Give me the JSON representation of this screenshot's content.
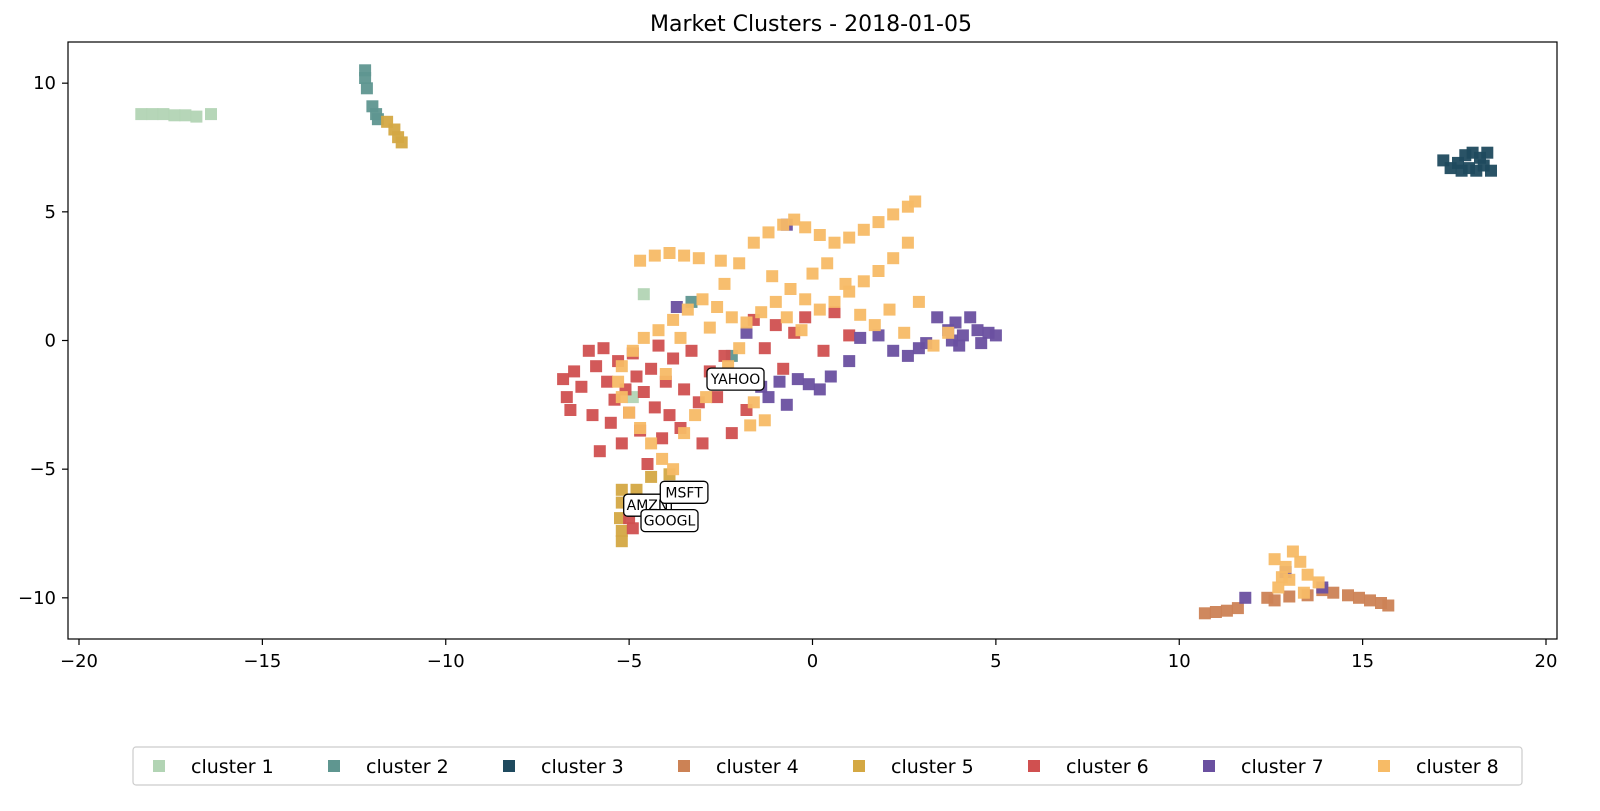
{
  "chart_data": {
    "type": "scatter",
    "title": "Market Clusters - 2018-01-05",
    "xlabel": "",
    "ylabel": "",
    "xlim": [
      -20.3,
      20.3
    ],
    "ylim": [
      -11.6,
      11.6
    ],
    "xticks": [
      -20,
      -15,
      -10,
      -5,
      0,
      5,
      10,
      15,
      20
    ],
    "xtick_labels": [
      "−20",
      "−15",
      "−10",
      "−5",
      "0",
      "5",
      "10",
      "15",
      "20"
    ],
    "yticks": [
      10,
      5,
      0,
      -5,
      -10
    ],
    "ytick_labels": [
      "10",
      "5",
      "0",
      "−5",
      "−10"
    ],
    "grid": false,
    "legend_position": "bottom-center",
    "marker": "square",
    "series": [
      {
        "name": "cluster 1",
        "color": "#b2d4b4",
        "points": [
          [
            -18.3,
            8.8
          ],
          [
            -18.0,
            8.8
          ],
          [
            -17.7,
            8.8
          ],
          [
            -17.4,
            8.75
          ],
          [
            -17.1,
            8.75
          ],
          [
            -16.8,
            8.7
          ],
          [
            -16.4,
            8.8
          ],
          [
            -4.6,
            1.8
          ],
          [
            -4.9,
            -2.2
          ]
        ]
      },
      {
        "name": "cluster 2",
        "color": "#5f9690",
        "points": [
          [
            -12.2,
            10.5
          ],
          [
            -12.2,
            10.2
          ],
          [
            -12.15,
            9.8
          ],
          [
            -12.0,
            9.1
          ],
          [
            -11.9,
            8.8
          ],
          [
            -11.85,
            8.6
          ],
          [
            -3.3,
            1.5
          ],
          [
            -2.2,
            -0.6
          ]
        ]
      },
      {
        "name": "cluster 3",
        "color": "#1f4a5e",
        "points": [
          [
            17.2,
            7.0
          ],
          [
            17.4,
            6.7
          ],
          [
            17.6,
            6.9
          ],
          [
            17.8,
            7.2
          ],
          [
            17.9,
            6.7
          ],
          [
            18.0,
            7.3
          ],
          [
            18.2,
            7.1
          ],
          [
            18.3,
            6.8
          ],
          [
            18.5,
            6.6
          ],
          [
            18.1,
            6.6
          ],
          [
            17.7,
            6.6
          ],
          [
            18.4,
            7.3
          ]
        ]
      },
      {
        "name": "cluster 4",
        "color": "#cc8255",
        "points": [
          [
            10.7,
            -10.6
          ],
          [
            11.0,
            -10.55
          ],
          [
            11.3,
            -10.5
          ],
          [
            11.6,
            -10.4
          ],
          [
            12.4,
            -10.0
          ],
          [
            12.6,
            -10.1
          ],
          [
            13.0,
            -9.95
          ],
          [
            13.5,
            -9.9
          ],
          [
            13.9,
            -9.7
          ],
          [
            14.2,
            -9.8
          ],
          [
            14.6,
            -9.9
          ],
          [
            14.9,
            -10.0
          ],
          [
            15.2,
            -10.1
          ],
          [
            15.5,
            -10.2
          ],
          [
            15.7,
            -10.3
          ]
        ]
      },
      {
        "name": "cluster 5",
        "color": "#d4a843",
        "points": [
          [
            -11.6,
            8.5
          ],
          [
            -11.4,
            8.2
          ],
          [
            -11.3,
            7.9
          ],
          [
            -11.2,
            7.7
          ],
          [
            -5.2,
            -5.8
          ],
          [
            -5.2,
            -6.3
          ],
          [
            -5.25,
            -6.9
          ],
          [
            -5.2,
            -7.4
          ],
          [
            -5.2,
            -7.8
          ],
          [
            -4.4,
            -5.3
          ],
          [
            -3.9,
            -5.2
          ],
          [
            -4.8,
            -5.8
          ]
        ]
      },
      {
        "name": "cluster 6",
        "color": "#d05050",
        "points": [
          [
            -6.8,
            -1.5
          ],
          [
            -6.7,
            -2.2
          ],
          [
            -6.6,
            -2.7
          ],
          [
            -6.5,
            -1.2
          ],
          [
            -6.3,
            -1.8
          ],
          [
            -6.1,
            -0.4
          ],
          [
            -6.0,
            -2.9
          ],
          [
            -5.9,
            -1.0
          ],
          [
            -5.8,
            -4.3
          ],
          [
            -5.7,
            -0.3
          ],
          [
            -5.6,
            -1.6
          ],
          [
            -5.5,
            -3.2
          ],
          [
            -5.4,
            -2.3
          ],
          [
            -5.3,
            -0.8
          ],
          [
            -5.2,
            -4.0
          ],
          [
            -5.1,
            -1.9
          ],
          [
            -5.0,
            -2.8
          ],
          [
            -4.9,
            -0.5
          ],
          [
            -4.8,
            -1.4
          ],
          [
            -4.7,
            -3.5
          ],
          [
            -4.6,
            -2.0
          ],
          [
            -4.5,
            -4.8
          ],
          [
            -4.4,
            -1.1
          ],
          [
            -4.3,
            -2.6
          ],
          [
            -4.2,
            -0.2
          ],
          [
            -4.1,
            -3.8
          ],
          [
            -4.0,
            -1.6
          ],
          [
            -3.9,
            -2.9
          ],
          [
            -3.8,
            -0.7
          ],
          [
            -3.6,
            -3.4
          ],
          [
            -3.5,
            -1.9
          ],
          [
            -3.3,
            -0.4
          ],
          [
            -3.1,
            -2.4
          ],
          [
            -3.0,
            -4.0
          ],
          [
            -2.8,
            -1.2
          ],
          [
            -2.6,
            -2.2
          ],
          [
            -2.4,
            -0.6
          ],
          [
            -2.2,
            -3.6
          ],
          [
            -2.0,
            -1.5
          ],
          [
            -1.8,
            -2.7
          ],
          [
            -1.6,
            0.8
          ],
          [
            -1.3,
            -0.3
          ],
          [
            -1.0,
            0.6
          ],
          [
            -0.8,
            -1.1
          ],
          [
            -0.5,
            0.3
          ],
          [
            -0.2,
            0.9
          ],
          [
            0.3,
            -0.4
          ],
          [
            0.6,
            1.1
          ],
          [
            1.0,
            0.2
          ],
          [
            -4.9,
            -6.4
          ],
          [
            -5.0,
            -6.9
          ],
          [
            -4.9,
            -7.3
          ]
        ]
      },
      {
        "name": "cluster 7",
        "color": "#6a50a0",
        "points": [
          [
            -3.7,
            1.3
          ],
          [
            -1.8,
            0.3
          ],
          [
            -1.4,
            -1.8
          ],
          [
            -1.2,
            -2.2
          ],
          [
            -0.9,
            -1.6
          ],
          [
            -0.7,
            -2.5
          ],
          [
            -0.4,
            -1.5
          ],
          [
            -0.1,
            -1.7
          ],
          [
            0.2,
            -1.9
          ],
          [
            0.5,
            -1.4
          ],
          [
            1.0,
            -0.8
          ],
          [
            1.3,
            0.1
          ],
          [
            1.8,
            0.2
          ],
          [
            2.2,
            -0.4
          ],
          [
            2.6,
            -0.6
          ],
          [
            2.9,
            -0.3
          ],
          [
            3.1,
            -0.1
          ],
          [
            3.4,
            0.9
          ],
          [
            3.7,
            0.4
          ],
          [
            3.9,
            0.7
          ],
          [
            4.1,
            0.2
          ],
          [
            4.3,
            0.9
          ],
          [
            4.5,
            0.4
          ],
          [
            4.6,
            -0.1
          ],
          [
            4.8,
            0.3
          ],
          [
            5.0,
            0.2
          ],
          [
            4.0,
            -0.2
          ],
          [
            3.8,
            0.0
          ],
          [
            -0.7,
            4.5
          ],
          [
            12.9,
            -9.0
          ],
          [
            13.9,
            -9.6
          ],
          [
            11.8,
            -10.0
          ]
        ]
      },
      {
        "name": "cluster 8",
        "color": "#f7bb66",
        "points": [
          [
            -4.7,
            3.1
          ],
          [
            -4.3,
            3.3
          ],
          [
            -3.9,
            3.4
          ],
          [
            -3.5,
            3.3
          ],
          [
            -3.1,
            3.2
          ],
          [
            -2.5,
            3.1
          ],
          [
            -2.0,
            3.0
          ],
          [
            -1.6,
            3.8
          ],
          [
            -1.2,
            4.2
          ],
          [
            -0.8,
            4.5
          ],
          [
            -0.5,
            4.7
          ],
          [
            -0.2,
            4.4
          ],
          [
            0.2,
            4.1
          ],
          [
            0.6,
            3.8
          ],
          [
            1.0,
            4.0
          ],
          [
            1.4,
            4.3
          ],
          [
            1.8,
            4.6
          ],
          [
            2.2,
            4.9
          ],
          [
            2.6,
            5.2
          ],
          [
            2.8,
            5.4
          ],
          [
            2.6,
            3.8
          ],
          [
            2.2,
            3.2
          ],
          [
            1.8,
            2.7
          ],
          [
            1.4,
            2.3
          ],
          [
            1.0,
            1.9
          ],
          [
            0.6,
            1.5
          ],
          [
            0.2,
            1.2
          ],
          [
            -0.2,
            1.6
          ],
          [
            -0.6,
            2.0
          ],
          [
            -1.0,
            1.5
          ],
          [
            -1.4,
            1.1
          ],
          [
            -1.8,
            0.7
          ],
          [
            -2.2,
            0.9
          ],
          [
            -2.6,
            1.3
          ],
          [
            -3.0,
            1.6
          ],
          [
            -3.4,
            1.2
          ],
          [
            -3.8,
            0.8
          ],
          [
            -4.2,
            0.4
          ],
          [
            -4.6,
            0.1
          ],
          [
            -4.9,
            -0.4
          ],
          [
            -5.2,
            -1.0
          ],
          [
            -5.3,
            -1.6
          ],
          [
            -5.2,
            -2.2
          ],
          [
            -5.0,
            -2.8
          ],
          [
            -4.7,
            -3.4
          ],
          [
            -4.4,
            -4.0
          ],
          [
            -4.1,
            -4.6
          ],
          [
            -3.8,
            -5.0
          ],
          [
            -3.5,
            -3.6
          ],
          [
            -3.2,
            -2.9
          ],
          [
            -2.9,
            -2.2
          ],
          [
            -2.6,
            -1.6
          ],
          [
            -2.3,
            -1.0
          ],
          [
            -2.0,
            -0.3
          ],
          [
            -1.6,
            -2.4
          ],
          [
            -1.3,
            -3.1
          ],
          [
            -1.7,
            -3.3
          ],
          [
            0.0,
            2.6
          ],
          [
            0.4,
            3.0
          ],
          [
            0.9,
            2.2
          ],
          [
            1.3,
            1.0
          ],
          [
            1.7,
            0.6
          ],
          [
            2.1,
            1.2
          ],
          [
            2.5,
            0.3
          ],
          [
            2.9,
            1.5
          ],
          [
            3.3,
            -0.2
          ],
          [
            3.7,
            0.3
          ],
          [
            -0.3,
            0.4
          ],
          [
            -0.7,
            0.9
          ],
          [
            -1.1,
            2.5
          ],
          [
            -2.4,
            2.2
          ],
          [
            -2.8,
            0.5
          ],
          [
            -3.6,
            0.1
          ],
          [
            -4.0,
            -1.3
          ],
          [
            12.6,
            -8.5
          ],
          [
            12.9,
            -8.8
          ],
          [
            13.1,
            -8.2
          ],
          [
            13.3,
            -8.6
          ],
          [
            13.5,
            -9.1
          ],
          [
            13.8,
            -9.4
          ],
          [
            13.0,
            -9.3
          ],
          [
            12.7,
            -9.6
          ],
          [
            13.4,
            -9.8
          ],
          [
            12.8,
            -9.2
          ]
        ]
      }
    ],
    "annotations": [
      {
        "text": "YAHOO",
        "x": -2.1,
        "y": -1.5
      },
      {
        "text": "AMZN",
        "x": -4.5,
        "y": -6.4
      },
      {
        "text": "MSFT",
        "x": -3.5,
        "y": -5.9
      },
      {
        "text": "GOOGL",
        "x": -3.9,
        "y": -7.0
      }
    ]
  }
}
